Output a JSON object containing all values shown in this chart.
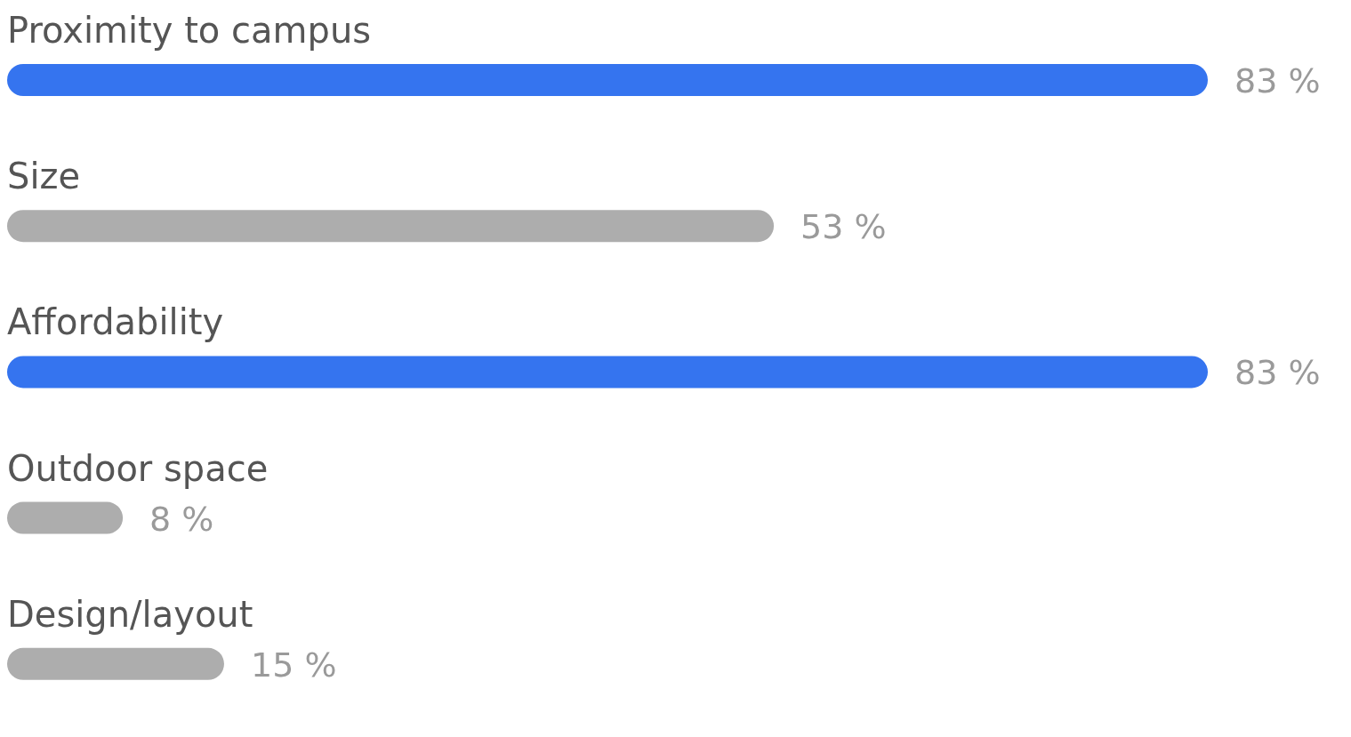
{
  "chart_data": {
    "type": "bar",
    "orientation": "horizontal",
    "categories": [
      "Proximity to campus",
      "Size",
      "Affordability",
      "Outdoor space",
      "Design/layout"
    ],
    "values": [
      83,
      53,
      83,
      8,
      15
    ],
    "colors": [
      "#3574ef",
      "#adadad",
      "#3574ef",
      "#adadad",
      "#adadad"
    ],
    "value_labels": [
      "83 %",
      "53 %",
      "83 %",
      "8 %",
      "15 %"
    ]
  }
}
